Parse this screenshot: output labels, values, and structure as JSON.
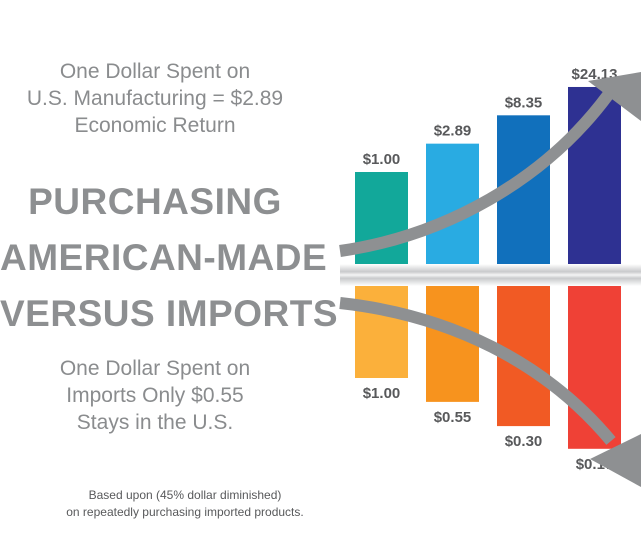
{
  "top_caption": [
    "One Dollar Spent on",
    "U.S. Manufacturing = $2.89",
    "Economic Return"
  ],
  "headline": [
    "PURCHASING",
    "AMERICAN-MADE",
    "VERSUS IMPORTS"
  ],
  "bottom_caption": [
    "One Dollar Spent on",
    "Imports Only $0.55",
    "Stays in the U.S."
  ],
  "footnote": [
    "Based upon (45% dollar diminished)",
    "on repeatedly purchasing imported products."
  ],
  "colors": {
    "text": "#8a8c8e",
    "value_label": "#58595b",
    "arrow": "#8e9092",
    "us_bars": [
      "#12a89a",
      "#29abe2",
      "#1170bc",
      "#2e3192"
    ],
    "import_bars": [
      "#fbb03b",
      "#f7931e",
      "#f15a24",
      "#ef4136"
    ]
  },
  "chart_data": {
    "type": "bar",
    "title": "",
    "series": [
      {
        "name": "",
        "values": [
          1.0,
          2.89,
          8.35,
          24.13
        ],
        "labels": [
          "$1.00",
          "$2.89",
          "$8.35",
          "$24.13"
        ]
      },
      {
        "name": "",
        "values": [
          1.0,
          0.55,
          0.3,
          0.17
        ],
        "labels": [
          "$1.00",
          "$0.55",
          "$0.30",
          "$0.17"
        ]
      }
    ],
    "scale": "log",
    "xlabel": "",
    "ylabel": "",
    "grid": false,
    "legend": "none"
  }
}
